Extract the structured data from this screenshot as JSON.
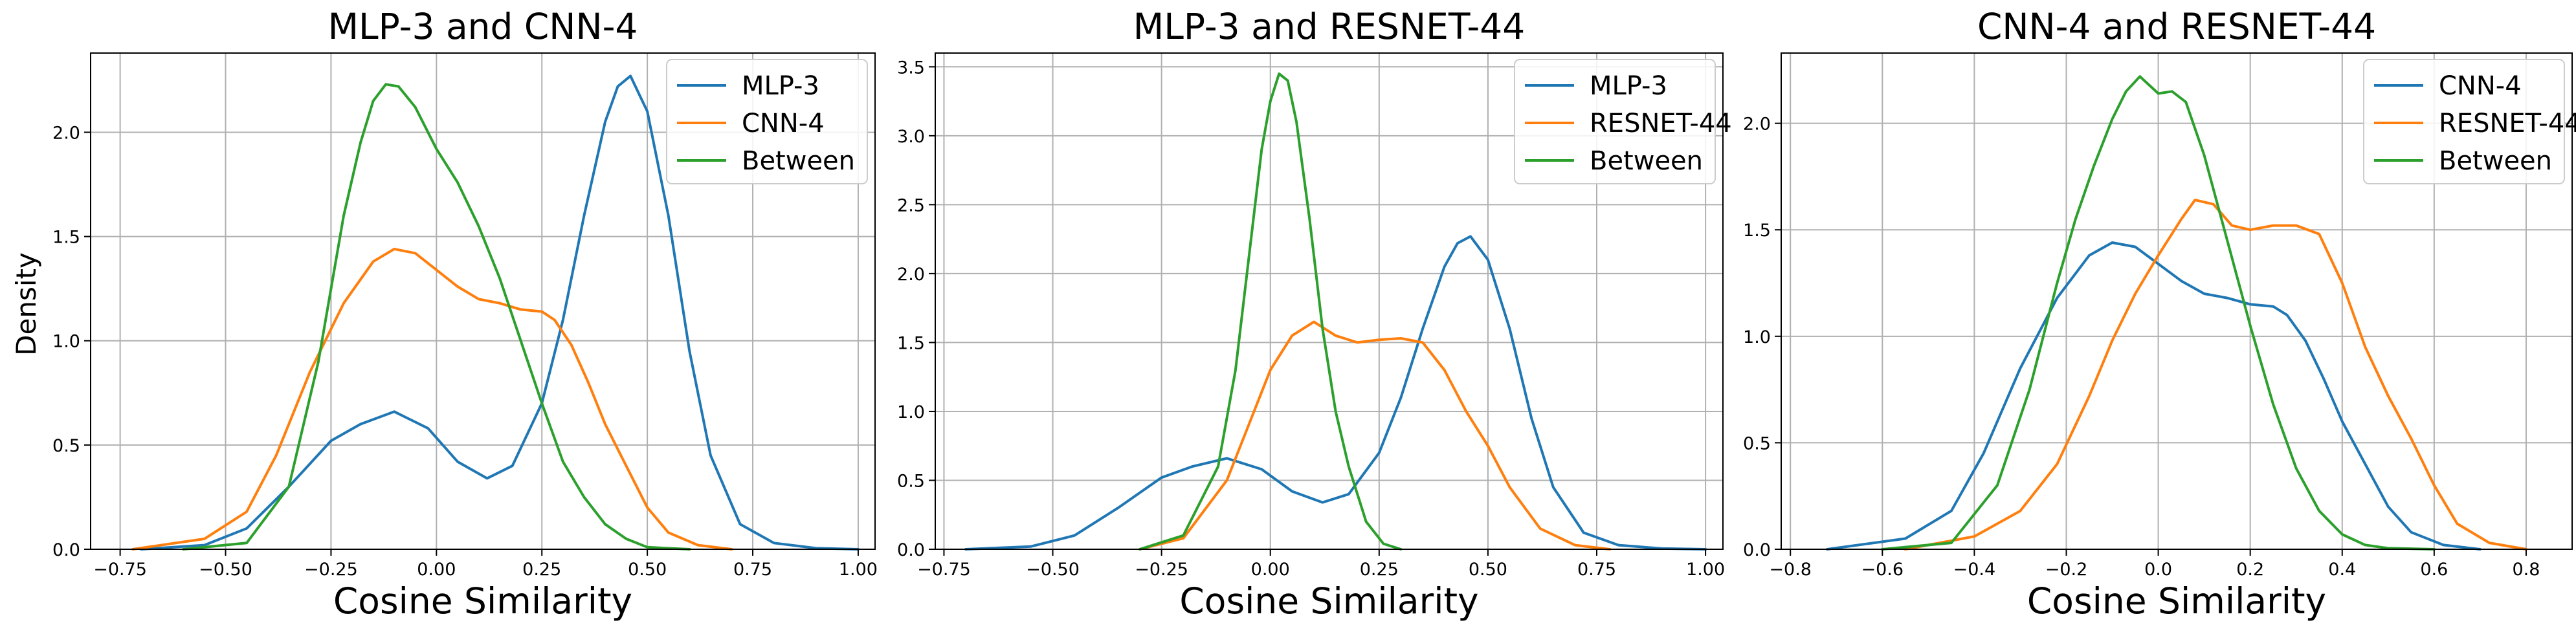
{
  "figure": {
    "ylabel": "Density",
    "xlabel": "Cosine Similarity"
  },
  "colors": {
    "blue": "#1f77b4",
    "orange": "#ff7f0e",
    "green": "#2ca02c",
    "grid": "#b0b0b0"
  },
  "chart_data": [
    {
      "type": "line",
      "title": "MLP-3 and CNN-4",
      "xlabel": "Cosine Similarity",
      "ylabel": "Density",
      "xlim": [
        -0.82,
        1.04
      ],
      "ylim": [
        0,
        2.38
      ],
      "xticks": [
        -0.75,
        -0.5,
        -0.25,
        0.0,
        0.25,
        0.5,
        0.75,
        1.0
      ],
      "xtick_labels": [
        "−0.75",
        "−0.50",
        "−0.25",
        "0.00",
        "0.25",
        "0.50",
        "0.75",
        "1.00"
      ],
      "yticks": [
        0,
        0.5,
        1.0,
        1.5,
        2.0
      ],
      "ytick_labels": [
        "0.0",
        "0.5",
        "1.0",
        "1.5",
        "2.0"
      ],
      "grid": true,
      "legend": "top-right",
      "series": [
        {
          "name": "MLP-3",
          "color": "#1f77b4",
          "x": [
            -0.7,
            -0.55,
            -0.45,
            -0.35,
            -0.25,
            -0.18,
            -0.1,
            -0.02,
            0.05,
            0.12,
            0.18,
            0.25,
            0.3,
            0.35,
            0.4,
            0.43,
            0.46,
            0.5,
            0.55,
            0.6,
            0.65,
            0.72,
            0.8,
            0.9,
            1.0
          ],
          "y": [
            0,
            0.02,
            0.1,
            0.3,
            0.52,
            0.6,
            0.66,
            0.58,
            0.42,
            0.34,
            0.4,
            0.7,
            1.1,
            1.6,
            2.05,
            2.22,
            2.27,
            2.1,
            1.6,
            0.95,
            0.45,
            0.12,
            0.03,
            0.005,
            0
          ]
        },
        {
          "name": "CNN-4",
          "color": "#ff7f0e",
          "x": [
            -0.72,
            -0.55,
            -0.45,
            -0.38,
            -0.3,
            -0.22,
            -0.15,
            -0.1,
            -0.05,
            0.0,
            0.05,
            0.1,
            0.15,
            0.2,
            0.25,
            0.28,
            0.32,
            0.36,
            0.4,
            0.45,
            0.5,
            0.55,
            0.62,
            0.7
          ],
          "y": [
            0,
            0.05,
            0.18,
            0.45,
            0.85,
            1.18,
            1.38,
            1.44,
            1.42,
            1.34,
            1.26,
            1.2,
            1.18,
            1.15,
            1.14,
            1.1,
            0.98,
            0.8,
            0.6,
            0.4,
            0.2,
            0.08,
            0.02,
            0
          ]
        },
        {
          "name": "Between",
          "color": "#2ca02c",
          "x": [
            -0.6,
            -0.45,
            -0.35,
            -0.28,
            -0.22,
            -0.18,
            -0.15,
            -0.12,
            -0.09,
            -0.05,
            0.0,
            0.05,
            0.1,
            0.15,
            0.2,
            0.25,
            0.3,
            0.35,
            0.4,
            0.45,
            0.5,
            0.6
          ],
          "y": [
            0,
            0.03,
            0.3,
            0.9,
            1.6,
            1.95,
            2.15,
            2.23,
            2.22,
            2.12,
            1.92,
            1.76,
            1.55,
            1.3,
            1.0,
            0.7,
            0.42,
            0.25,
            0.12,
            0.05,
            0.01,
            0
          ]
        }
      ]
    },
    {
      "type": "line",
      "title": "MLP-3 and RESNET-44",
      "xlabel": "Cosine Similarity",
      "ylabel": "",
      "xlim": [
        -0.77,
        1.04
      ],
      "ylim": [
        0,
        3.6
      ],
      "xticks": [
        -0.75,
        -0.5,
        -0.25,
        0.0,
        0.25,
        0.5,
        0.75,
        1.0
      ],
      "xtick_labels": [
        "−0.75",
        "−0.50",
        "−0.25",
        "0.00",
        "0.25",
        "0.50",
        "0.75",
        "1.00"
      ],
      "yticks": [
        0,
        0.5,
        1.0,
        1.5,
        2.0,
        2.5,
        3.0,
        3.5
      ],
      "ytick_labels": [
        "0.0",
        "0.5",
        "1.0",
        "1.5",
        "2.0",
        "2.5",
        "3.0",
        "3.5"
      ],
      "grid": true,
      "legend": "top-right",
      "series": [
        {
          "name": "MLP-3",
          "color": "#1f77b4",
          "x": [
            -0.7,
            -0.55,
            -0.45,
            -0.35,
            -0.25,
            -0.18,
            -0.1,
            -0.02,
            0.05,
            0.12,
            0.18,
            0.25,
            0.3,
            0.35,
            0.4,
            0.43,
            0.46,
            0.5,
            0.55,
            0.6,
            0.65,
            0.72,
            0.8,
            0.9,
            1.0
          ],
          "y": [
            0,
            0.02,
            0.1,
            0.3,
            0.52,
            0.6,
            0.66,
            0.58,
            0.42,
            0.34,
            0.4,
            0.7,
            1.1,
            1.6,
            2.05,
            2.22,
            2.27,
            2.1,
            1.6,
            0.95,
            0.45,
            0.12,
            0.03,
            0.005,
            0
          ]
        },
        {
          "name": "RESNET-44",
          "color": "#ff7f0e",
          "x": [
            -0.3,
            -0.2,
            -0.1,
            -0.05,
            0.0,
            0.05,
            0.1,
            0.15,
            0.2,
            0.25,
            0.3,
            0.35,
            0.4,
            0.45,
            0.5,
            0.55,
            0.62,
            0.7,
            0.78
          ],
          "y": [
            0,
            0.08,
            0.5,
            0.9,
            1.3,
            1.55,
            1.65,
            1.55,
            1.5,
            1.52,
            1.53,
            1.5,
            1.3,
            1.0,
            0.75,
            0.45,
            0.15,
            0.03,
            0
          ]
        },
        {
          "name": "Between",
          "color": "#2ca02c",
          "x": [
            -0.3,
            -0.2,
            -0.12,
            -0.08,
            -0.05,
            -0.02,
            0.0,
            0.02,
            0.04,
            0.06,
            0.09,
            0.12,
            0.15,
            0.18,
            0.22,
            0.26,
            0.3
          ],
          "y": [
            0,
            0.1,
            0.6,
            1.3,
            2.1,
            2.9,
            3.25,
            3.45,
            3.4,
            3.1,
            2.4,
            1.6,
            1.0,
            0.6,
            0.2,
            0.04,
            0
          ]
        }
      ]
    },
    {
      "type": "line",
      "title": "CNN-4 and RESNET-44",
      "xlabel": "Cosine Similarity",
      "ylabel": "",
      "xlim": [
        -0.82,
        0.9
      ],
      "ylim": [
        0,
        2.33
      ],
      "xticks": [
        -0.8,
        -0.6,
        -0.4,
        -0.2,
        0.0,
        0.2,
        0.4,
        0.6,
        0.8
      ],
      "xtick_labels": [
        "−0.8",
        "−0.6",
        "−0.4",
        "−0.2",
        "0.0",
        "0.2",
        "0.4",
        "0.6",
        "0.8"
      ],
      "yticks": [
        0,
        0.5,
        1.0,
        1.5,
        2.0
      ],
      "ytick_labels": [
        "0.0",
        "0.5",
        "1.0",
        "1.5",
        "2.0"
      ],
      "grid": true,
      "legend": "top-right",
      "series": [
        {
          "name": "CNN-4",
          "color": "#1f77b4",
          "x": [
            -0.72,
            -0.55,
            -0.45,
            -0.38,
            -0.3,
            -0.22,
            -0.15,
            -0.1,
            -0.05,
            0.0,
            0.05,
            0.1,
            0.15,
            0.2,
            0.25,
            0.28,
            0.32,
            0.36,
            0.4,
            0.45,
            0.5,
            0.55,
            0.62,
            0.7
          ],
          "y": [
            0,
            0.05,
            0.18,
            0.45,
            0.85,
            1.18,
            1.38,
            1.44,
            1.42,
            1.34,
            1.26,
            1.2,
            1.18,
            1.15,
            1.14,
            1.1,
            0.98,
            0.8,
            0.6,
            0.4,
            0.2,
            0.08,
            0.02,
            0
          ]
        },
        {
          "name": "RESNET-44",
          "color": "#ff7f0e",
          "x": [
            -0.55,
            -0.4,
            -0.3,
            -0.22,
            -0.15,
            -0.1,
            -0.05,
            0.0,
            0.05,
            0.08,
            0.12,
            0.16,
            0.2,
            0.25,
            0.3,
            0.35,
            0.4,
            0.45,
            0.5,
            0.55,
            0.6,
            0.65,
            0.72,
            0.8
          ],
          "y": [
            0,
            0.06,
            0.18,
            0.4,
            0.72,
            0.98,
            1.2,
            1.38,
            1.55,
            1.64,
            1.62,
            1.52,
            1.5,
            1.52,
            1.52,
            1.48,
            1.25,
            0.95,
            0.72,
            0.52,
            0.3,
            0.12,
            0.03,
            0
          ]
        },
        {
          "name": "Between",
          "color": "#2ca02c",
          "x": [
            -0.6,
            -0.45,
            -0.35,
            -0.28,
            -0.22,
            -0.18,
            -0.14,
            -0.1,
            -0.07,
            -0.04,
            0.0,
            0.03,
            0.06,
            0.1,
            0.15,
            0.2,
            0.25,
            0.3,
            0.35,
            0.4,
            0.45,
            0.5,
            0.6
          ],
          "y": [
            0,
            0.03,
            0.3,
            0.75,
            1.25,
            1.55,
            1.8,
            2.02,
            2.15,
            2.22,
            2.14,
            2.15,
            2.1,
            1.85,
            1.45,
            1.05,
            0.68,
            0.38,
            0.18,
            0.07,
            0.02,
            0.005,
            0
          ]
        }
      ]
    }
  ]
}
